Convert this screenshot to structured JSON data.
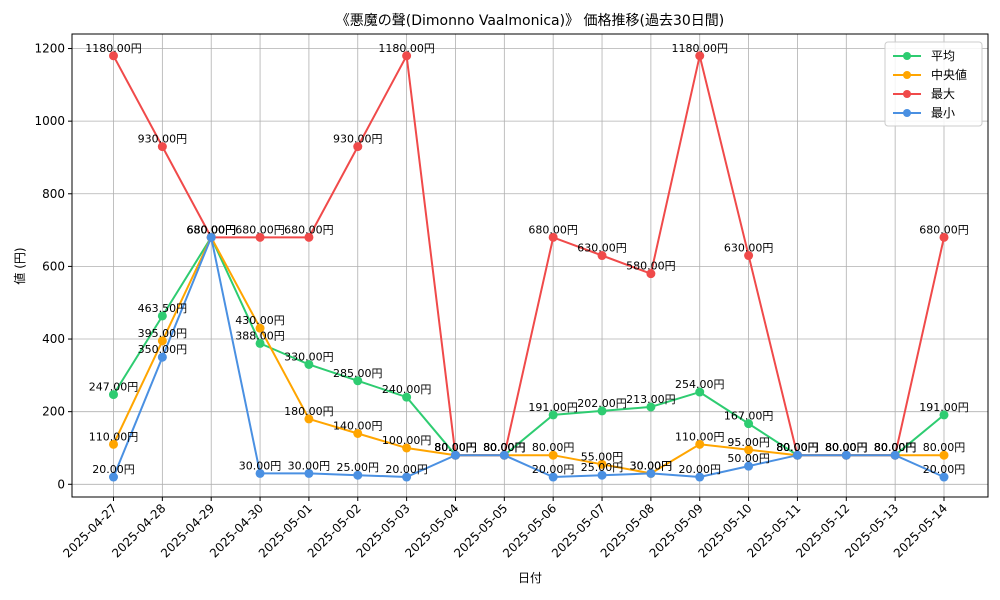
{
  "chart_data": {
    "type": "line",
    "title": "《悪魔の聲(Dimonno Vaalmonica)》 価格推移(過去30日間)",
    "xlabel": "日付",
    "ylabel": "値 (円)",
    "ylim": [
      -35,
      1240
    ],
    "yticks": [
      0,
      200,
      400,
      600,
      800,
      1000,
      1200
    ],
    "grid": true,
    "legend_position": "top-right",
    "label_suffix": "円",
    "categories": [
      "2025-04-27",
      "2025-04-28",
      "2025-04-29",
      "2025-04-30",
      "2025-05-01",
      "2025-05-02",
      "2025-05-03",
      "2025-05-04",
      "2025-05-05",
      "2025-05-06",
      "2025-05-07",
      "2025-05-08",
      "2025-05-09",
      "2025-05-10",
      "2025-05-11",
      "2025-05-12",
      "2025-05-13",
      "2025-05-14"
    ],
    "series": [
      {
        "name": "平均",
        "color": "#2ecc71",
        "values": [
          247,
          463.5,
          680,
          388,
          330,
          285,
          240,
          80,
          80,
          191,
          202,
          213,
          254,
          167,
          80,
          80,
          80,
          191
        ]
      },
      {
        "name": "中央値",
        "color": "#ffa500",
        "values": [
          110,
          395,
          680,
          430,
          180,
          140,
          100,
          80,
          80,
          80,
          55,
          30,
          110,
          95,
          80,
          80,
          80,
          80
        ]
      },
      {
        "name": "最大",
        "color": "#f04a4a",
        "values": [
          1180,
          930,
          680,
          680,
          680,
          930,
          1180,
          80,
          80,
          680,
          630,
          580,
          1180,
          630,
          80,
          80,
          80,
          680
        ]
      },
      {
        "name": "最小",
        "color": "#4a90e2",
        "values": [
          20,
          350,
          680,
          30,
          30,
          25,
          20,
          80,
          80,
          20,
          25,
          30,
          20,
          50,
          80,
          80,
          80,
          20
        ]
      }
    ]
  }
}
